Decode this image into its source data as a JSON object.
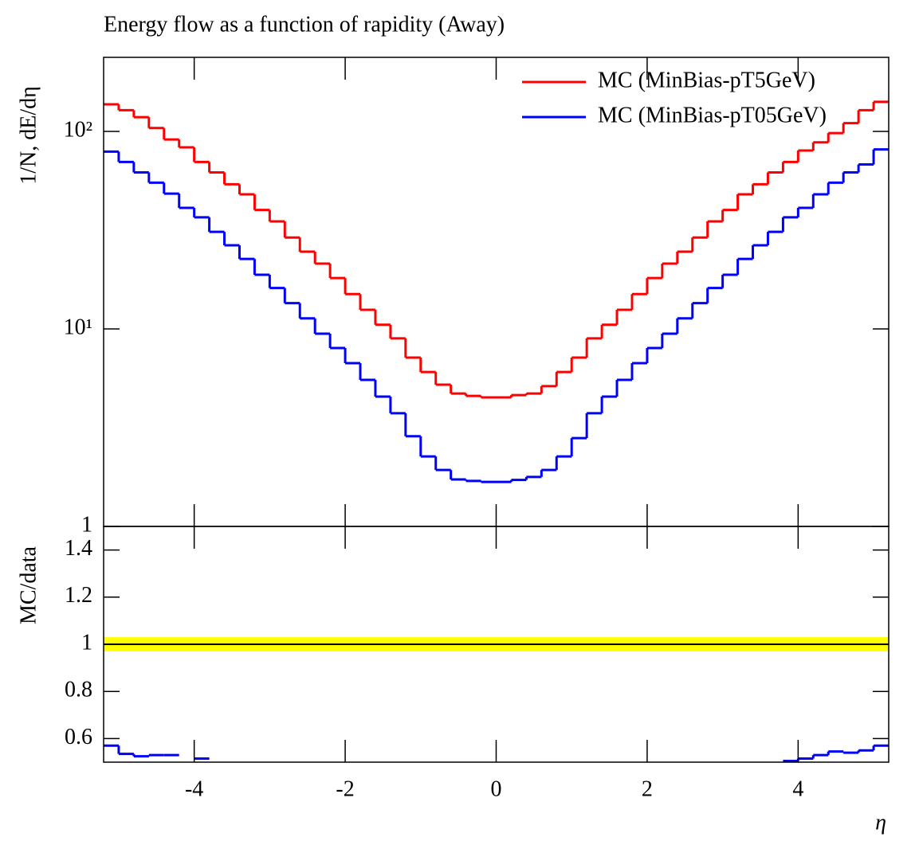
{
  "chart_data": [
    {
      "type": "histogram",
      "title": "Energy flow as a function of rapidity (Away)",
      "ylabel": "1/N, dE/dη",
      "log_y": true,
      "legend": "upper right",
      "xlim": [
        -5.2,
        5.2
      ],
      "ylim": [
        1,
        237
      ],
      "yticks": [
        1,
        {
          "value": 10,
          "label": "10¹"
        },
        {
          "value": 100,
          "label": "10²"
        }
      ],
      "bins": [
        -5.2,
        -5.0,
        -4.8,
        -4.6,
        -4.4,
        -4.2,
        -4.0,
        -3.8,
        -3.6,
        -3.4,
        -3.2,
        -3.0,
        -2.8,
        -2.6,
        -2.4,
        -2.2,
        -2.0,
        -1.8,
        -1.6,
        -1.4,
        -1.2,
        -1.0,
        -0.8,
        -0.6,
        -0.4,
        -0.2,
        0,
        0.2,
        0.4,
        0.6,
        0.8,
        1.0,
        1.2,
        1.4,
        1.6,
        1.8,
        2.0,
        2.2,
        2.4,
        2.6,
        2.8,
        3.0,
        3.2,
        3.4,
        3.6,
        3.8,
        4.0,
        4.2,
        4.4,
        4.6,
        4.8,
        5.0,
        5.2
      ],
      "series": [
        {
          "name": "MC (MinBias-pT5GeV)",
          "color": "#ff0000",
          "values": [
            137,
            128,
            118,
            104,
            91,
            83,
            70,
            62,
            54,
            48,
            40,
            35,
            29,
            24.6,
            21.4,
            18.1,
            15.0,
            12.5,
            10.5,
            8.95,
            7.16,
            6.05,
            5.22,
            4.71,
            4.58,
            4.5,
            4.5,
            4.62,
            4.71,
            5.13,
            6.05,
            7.16,
            8.95,
            10.5,
            12.5,
            15.0,
            18.1,
            21.4,
            24.6,
            29,
            35,
            40,
            48,
            54,
            62,
            70,
            80,
            88,
            98,
            110,
            128,
            141
          ]
        },
        {
          "name": "MC (MinBias-pT05GeV)",
          "color": "#0000ff",
          "values": [
            79,
            70,
            62,
            55,
            48.4,
            41,
            36.7,
            31,
            26.5,
            22.6,
            18.8,
            16.1,
            13.5,
            11.3,
            9.46,
            8.0,
            6.71,
            5.52,
            4.54,
            3.74,
            2.86,
            2.26,
            1.93,
            1.73,
            1.7,
            1.68,
            1.68,
            1.72,
            1.78,
            1.93,
            2.26,
            2.8,
            3.74,
            4.54,
            5.52,
            6.71,
            8.0,
            9.46,
            11.3,
            13.5,
            16.1,
            18.8,
            22.6,
            26.5,
            31,
            36.7,
            41,
            48,
            55,
            62,
            68,
            81
          ]
        }
      ]
    },
    {
      "type": "histogram",
      "ylabel": "MC/data",
      "xlabel": "η",
      "xlim": [
        -5.2,
        5.2
      ],
      "ylim": [
        0.5,
        1.5
      ],
      "xticks": [
        -4,
        -2,
        0,
        2,
        4
      ],
      "yticks": [
        0.6,
        0.8,
        1,
        1.2,
        1.4
      ],
      "reference": 1,
      "band": {
        "color": "#ffff00",
        "lower": 0.97,
        "upper": 1.03
      },
      "bins": [
        -5.2,
        -5.0,
        -4.8,
        -4.6,
        -4.4,
        -4.2,
        -4.0,
        -3.8,
        -3.6,
        -3.4,
        -3.2,
        -3.0,
        -2.8,
        -2.6,
        -2.4,
        -2.2,
        -2.0,
        -1.8,
        -1.6,
        -1.4,
        -1.2,
        -1.0,
        -0.8,
        -0.6,
        -0.4,
        -0.2,
        0,
        0.2,
        0.4,
        0.6,
        0.8,
        1.0,
        1.2,
        1.4,
        1.6,
        1.8,
        2.0,
        2.2,
        2.4,
        2.6,
        2.8,
        3.0,
        3.2,
        3.4,
        3.6,
        3.8,
        4.0,
        4.2,
        4.4,
        4.6,
        4.8,
        5.0,
        5.2
      ],
      "series": [
        {
          "color": "#0000ff",
          "values": [
            0.57,
            0.535,
            0.525,
            0.53,
            0.53,
            null,
            0.515,
            null,
            null,
            null,
            null,
            null,
            null,
            null,
            null,
            null,
            null,
            null,
            null,
            null,
            null,
            null,
            null,
            null,
            null,
            null,
            null,
            null,
            null,
            null,
            null,
            null,
            null,
            null,
            null,
            null,
            null,
            null,
            null,
            null,
            null,
            null,
            null,
            null,
            null,
            0.505,
            0.515,
            0.53,
            0.545,
            0.54,
            0.55,
            0.57
          ]
        }
      ]
    }
  ]
}
